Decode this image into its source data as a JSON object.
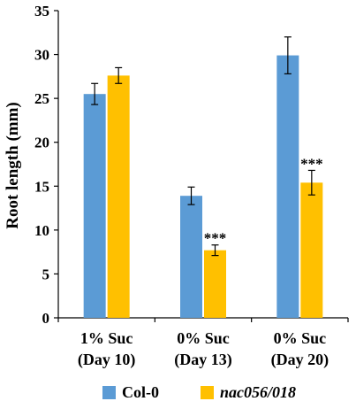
{
  "chart_data": {
    "type": "bar",
    "title": "",
    "xlabel": "",
    "ylabel": "Root length (mm)",
    "ylim": [
      0,
      35
    ],
    "yticks": [
      0,
      5,
      10,
      15,
      20,
      25,
      30,
      35
    ],
    "grid": false,
    "legend_position": "bottom",
    "categories": [
      [
        "1% Suc",
        "(Day 10)"
      ],
      [
        "0% Suc",
        "(Day 13)"
      ],
      [
        "0% Suc",
        "(Day 20)"
      ]
    ],
    "series": [
      {
        "name": "Col-0",
        "color": "#5B9BD5",
        "values": [
          25.5,
          13.9,
          29.9
        ],
        "errors": [
          1.2,
          1.0,
          2.1
        ],
        "significance": [
          "",
          "",
          ""
        ]
      },
      {
        "name": "nac056/018",
        "color": "#FFC000",
        "values": [
          27.6,
          7.7,
          15.4
        ],
        "errors": [
          0.9,
          0.6,
          1.4
        ],
        "significance": [
          "",
          "***",
          "***"
        ]
      }
    ]
  }
}
